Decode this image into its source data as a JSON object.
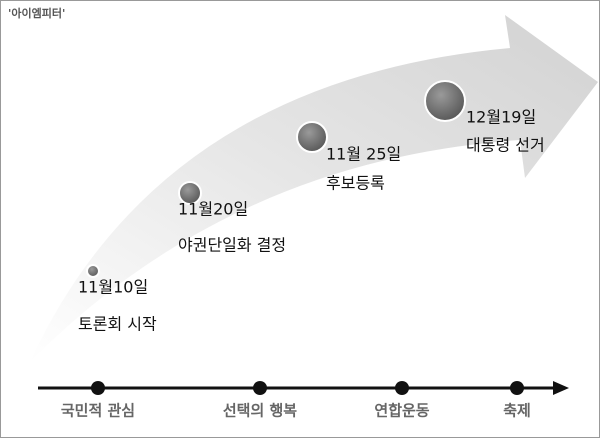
{
  "header": {
    "title": "'아이엠피터'"
  },
  "events": [
    {
      "date": "11월10일",
      "label": "토론회 시작"
    },
    {
      "date": "11월20일",
      "label": "야권단일화 결정"
    },
    {
      "date": "11월 25일",
      "label": "후보등록"
    },
    {
      "date": "12월19일",
      "label": "대통령 선거"
    }
  ],
  "timeline": [
    "국민적 관심",
    "선택의 행복",
    "연합운동",
    "축제"
  ]
}
